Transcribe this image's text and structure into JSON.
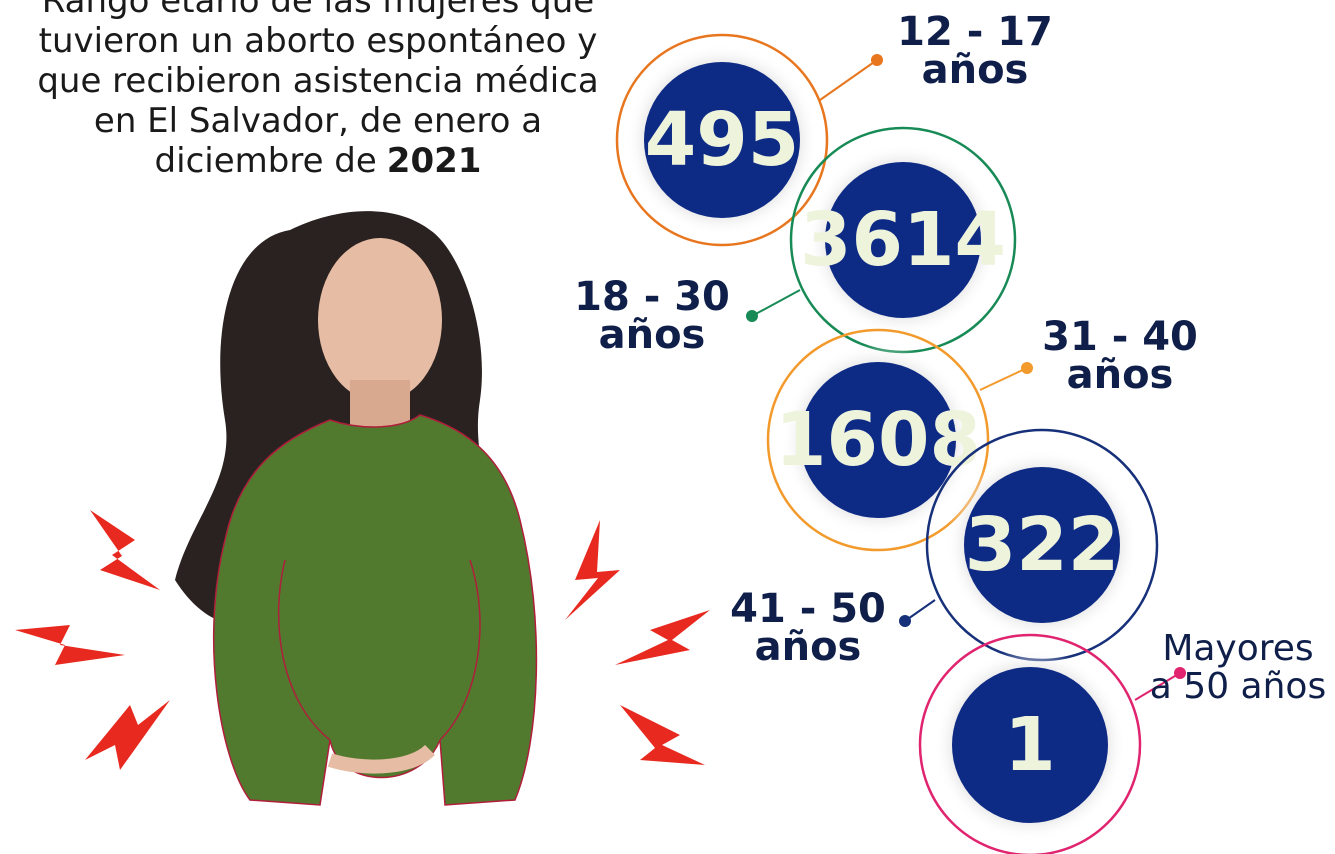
{
  "title": {
    "lines": [
      "Rango etario de las mujeres que",
      "tuvieron un aborto espontáneo y",
      "que recibieron asistencia médica",
      "en El Salvador, de enero a"
    ],
    "last_line": "diciembre de",
    "year": "2021"
  },
  "groups": [
    {
      "value": 495,
      "label": [
        "12 - 17",
        "años"
      ]
    },
    {
      "value": 3614,
      "label": [
        "18 - 30",
        "años"
      ]
    },
    {
      "value": 1608,
      "label": [
        "31 - 40",
        "años"
      ]
    },
    {
      "value": 322,
      "label": [
        "41 - 50",
        "años"
      ]
    },
    {
      "value": 1,
      "label": [
        "Mayores",
        "a 50 años"
      ]
    }
  ]
}
